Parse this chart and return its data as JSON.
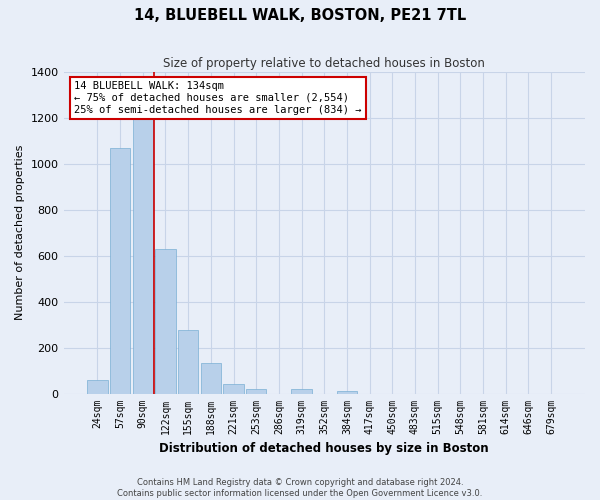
{
  "title": "14, BLUEBELL WALK, BOSTON, PE21 7TL",
  "subtitle": "Size of property relative to detached houses in Boston",
  "xlabel": "Distribution of detached houses by size in Boston",
  "ylabel": "Number of detached properties",
  "categories": [
    "24sqm",
    "57sqm",
    "90sqm",
    "122sqm",
    "155sqm",
    "188sqm",
    "221sqm",
    "253sqm",
    "286sqm",
    "319sqm",
    "352sqm",
    "384sqm",
    "417sqm",
    "450sqm",
    "483sqm",
    "515sqm",
    "548sqm",
    "581sqm",
    "614sqm",
    "646sqm",
    "679sqm"
  ],
  "values": [
    60,
    1070,
    1240,
    630,
    275,
    135,
    42,
    18,
    0,
    18,
    0,
    12,
    0,
    0,
    0,
    0,
    0,
    0,
    0,
    0,
    0
  ],
  "bar_color": "#b8d0ea",
  "bar_edge_color": "#7aafd4",
  "grid_color": "#c8d4e8",
  "background_color": "#e8eef8",
  "red_line_x": 2.5,
  "annotation_line1": "14 BLUEBELL WALK: 134sqm",
  "annotation_line2": "← 75% of detached houses are smaller (2,554)",
  "annotation_line3": "25% of semi-detached houses are larger (834) →",
  "annotation_box_color": "#ffffff",
  "annotation_box_edge": "#cc0000",
  "ylim": [
    0,
    1400
  ],
  "yticks": [
    0,
    200,
    400,
    600,
    800,
    1000,
    1200,
    1400
  ],
  "footer_line1": "Contains HM Land Registry data © Crown copyright and database right 2024.",
  "footer_line2": "Contains public sector information licensed under the Open Government Licence v3.0."
}
